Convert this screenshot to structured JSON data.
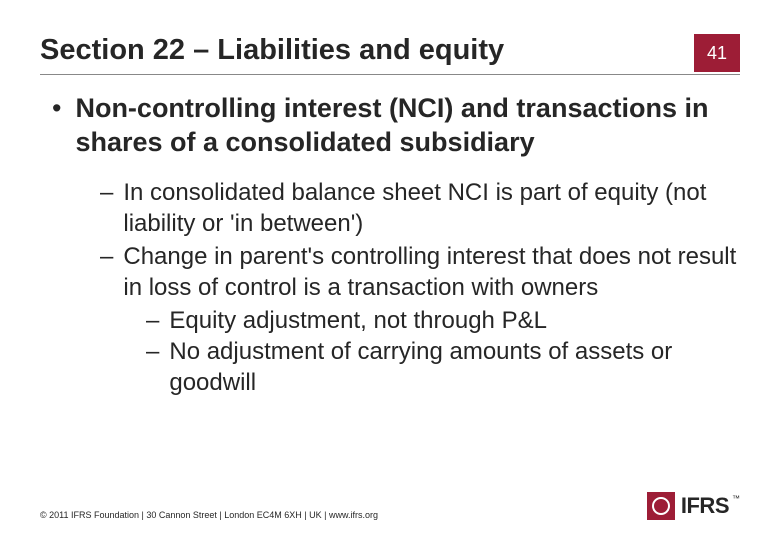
{
  "header": {
    "title": "Section 22 – Liabilities and equity",
    "page_number": "41",
    "accent_color": "#9d1d36"
  },
  "content": {
    "main_bullet": "Non-controlling interest (NCI) and transactions in shares of a consolidated subsidiary",
    "sub_items": [
      {
        "text": "In consolidated balance sheet NCI is part of equity (not liability or 'in between')",
        "children": []
      },
      {
        "text": "Change in parent's controlling interest that does not result in loss of control is a transaction with owners",
        "children": [
          "Equity adjustment, not through P&L",
          "No adjustment of carrying amounts of assets or goodwill"
        ]
      }
    ]
  },
  "footer": {
    "copyright": "© 2011 IFRS Foundation  |  30 Cannon Street  |  London EC4M 6XH  |  UK  |  www.ifrs.org",
    "logo_text": "IFRS",
    "logo_tm": "™"
  }
}
